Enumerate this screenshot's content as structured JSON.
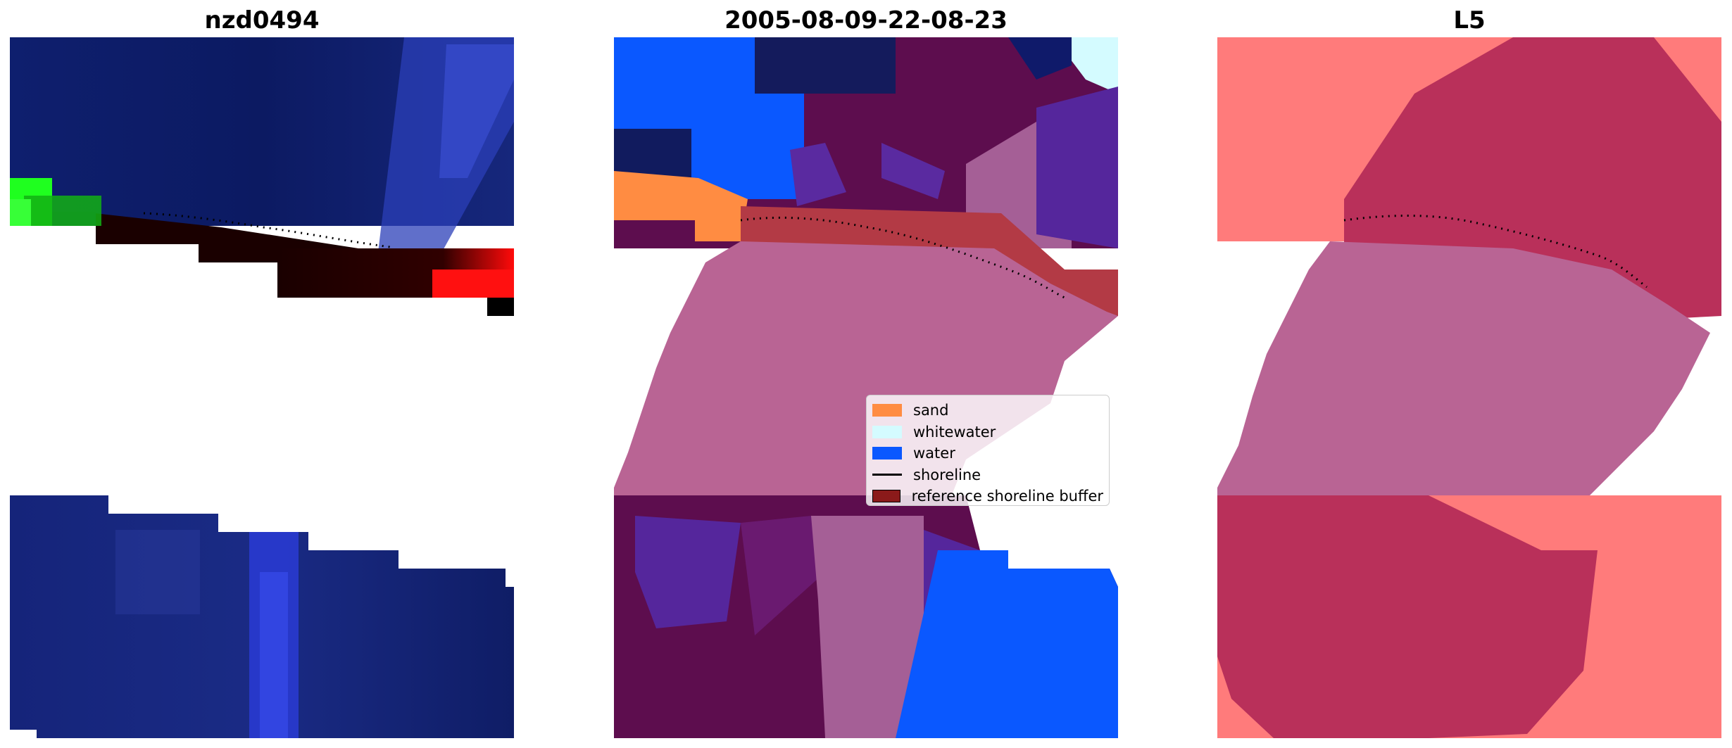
{
  "panels": {
    "image": {
      "title": "nzd0494"
    },
    "classified": {
      "title": "2005-08-09-22-08-23"
    },
    "reference": {
      "title": "L5"
    }
  },
  "legend": {
    "items": [
      {
        "label": "sand",
        "color": "#ff8c42",
        "kind": "patch"
      },
      {
        "label": "whitewater",
        "color": "#d4fbff",
        "kind": "patch"
      },
      {
        "label": "water",
        "color": "#0a58ff",
        "kind": "patch"
      },
      {
        "label": "shoreline",
        "color": "#000000",
        "kind": "line"
      },
      {
        "label": "reference shoreline buffer",
        "color": "#8b1a1a",
        "kind": "patch"
      }
    ]
  }
}
